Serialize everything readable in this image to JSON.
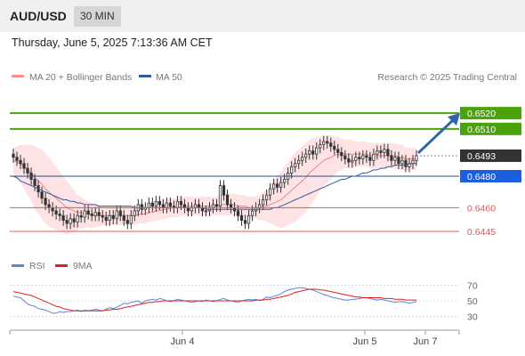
{
  "header": {
    "pair": "AUD/USD",
    "timeframe": "30 MIN"
  },
  "timestamp": "Thursday, June 5, 2025 7:13:36 AM CET",
  "legend": {
    "ma20_bb": "MA 20 + Bollinger Bands",
    "ma50": "MA 50",
    "credit": "Research © 2025 Trading Central",
    "rsi": "RSI",
    "rsi_ma": "9MA"
  },
  "colors": {
    "bullish_line": "#4aa30b",
    "bearish_line": "#e05656",
    "pivot": "#1b4fa0",
    "pivot_label": "#1a5fe0",
    "current": "#333333",
    "arrow": "#2e66a8",
    "ma20": "#e88a8a",
    "bb_fill": "#fde3e3",
    "ma50": "#2f5aa0",
    "rsi": "#5b86d6",
    "rsi_ma": "#e02020"
  },
  "chart_data": [
    {
      "type": "candlestick",
      "title": "AUD/USD 30 MIN",
      "ylim": [
        0.6432,
        0.6537
      ],
      "levels": [
        {
          "value": 0.652,
          "label": "0.6520",
          "kind": "resistance"
        },
        {
          "value": 0.651,
          "label": "0.6510",
          "kind": "resistance"
        },
        {
          "value": 0.6493,
          "label": "0.6493",
          "kind": "current"
        },
        {
          "value": 0.648,
          "label": "0.6480",
          "kind": "pivot"
        },
        {
          "value": 0.646,
          "label": "0.6460",
          "kind": "support"
        },
        {
          "value": 0.6445,
          "label": "0.6445",
          "kind": "support"
        }
      ],
      "x_ticks": [
        "Jun 4",
        "Jun 5",
        "Jun 7"
      ],
      "close": [
        0.6492,
        0.649,
        0.6488,
        0.6485,
        0.6482,
        0.6478,
        0.6474,
        0.647,
        0.6466,
        0.6462,
        0.646,
        0.6458,
        0.6456,
        0.6455,
        0.6452,
        0.645,
        0.6453,
        0.6451,
        0.6455,
        0.6454,
        0.6458,
        0.6456,
        0.6455,
        0.6457,
        0.6455,
        0.6454,
        0.6452,
        0.6455,
        0.6453,
        0.6458,
        0.6455,
        0.6452,
        0.645,
        0.6455,
        0.6458,
        0.6462,
        0.6459,
        0.646,
        0.6463,
        0.6461,
        0.6464,
        0.6462,
        0.646,
        0.6463,
        0.6461,
        0.646,
        0.6464,
        0.6462,
        0.646,
        0.6458,
        0.646,
        0.6462,
        0.646,
        0.6458,
        0.6458,
        0.646,
        0.6462,
        0.6461,
        0.6474,
        0.6468,
        0.6462,
        0.646,
        0.6458,
        0.6455,
        0.6452,
        0.645,
        0.6455,
        0.6458,
        0.646,
        0.6462,
        0.6465,
        0.6468,
        0.6472,
        0.6475,
        0.6473,
        0.6476,
        0.6478,
        0.6482,
        0.6486,
        0.6488,
        0.649,
        0.6492,
        0.6494,
        0.6496,
        0.6494,
        0.6498,
        0.65,
        0.6502,
        0.6501,
        0.6499,
        0.6497,
        0.6495,
        0.6493,
        0.6491,
        0.6489,
        0.649,
        0.6492,
        0.6491,
        0.6493,
        0.6492,
        0.649,
        0.6494,
        0.6496,
        0.6495,
        0.6497,
        0.6493,
        0.649,
        0.6492,
        0.6488,
        0.649,
        0.6486,
        0.6488,
        0.649,
        0.6493
      ],
      "ma20": [
        0.649,
        0.6489,
        0.6488,
        0.6486,
        0.6484,
        0.6482,
        0.6479,
        0.6477,
        0.6475,
        0.6472,
        0.647,
        0.6468,
        0.6466,
        0.6464,
        0.6462,
        0.646,
        0.6459,
        0.6458,
        0.6457,
        0.6457,
        0.6456,
        0.6456,
        0.6455,
        0.6455,
        0.6455,
        0.6455,
        0.6455,
        0.6455,
        0.6455,
        0.6455,
        0.6455,
        0.6455,
        0.6455,
        0.6455,
        0.6455,
        0.6456,
        0.6456,
        0.6456,
        0.6457,
        0.6457,
        0.6458,
        0.6458,
        0.6459,
        0.6459,
        0.646,
        0.646,
        0.646,
        0.6461,
        0.6461,
        0.6461,
        0.6461,
        0.6461,
        0.6461,
        0.6461,
        0.6461,
        0.6461,
        0.6461,
        0.6461,
        0.6462,
        0.6462,
        0.6462,
        0.6462,
        0.6462,
        0.6461,
        0.6461,
        0.6461,
        0.646,
        0.646,
        0.646,
        0.646,
        0.6461,
        0.6461,
        0.6462,
        0.6463,
        0.6464,
        0.6465,
        0.6467,
        0.6469,
        0.6471,
        0.6473,
        0.6475,
        0.6477,
        0.6479,
        0.6482,
        0.6484,
        0.6486,
        0.6488,
        0.649,
        0.6491,
        0.6492,
        0.6493,
        0.6494,
        0.6494,
        0.6494,
        0.6494,
        0.6494,
        0.6494,
        0.6494,
        0.6494,
        0.6494,
        0.6493,
        0.6493,
        0.6493,
        0.6493,
        0.6493,
        0.6493,
        0.6493,
        0.6493,
        0.6492,
        0.6492,
        0.6491,
        0.6491,
        0.6491,
        0.6491
      ],
      "bb_width": [
        0.0008,
        0.001,
        0.0012,
        0.0014,
        0.0016,
        0.0018,
        0.002,
        0.0021,
        0.0022,
        0.0022,
        0.0022,
        0.0021,
        0.002,
        0.0019,
        0.0018,
        0.0017,
        0.0015,
        0.0013,
        0.0011,
        0.001,
        0.0009,
        0.0008,
        0.0008,
        0.0007,
        0.0007,
        0.0006,
        0.0006,
        0.0006,
        0.0006,
        0.0006,
        0.0006,
        0.0006,
        0.0006,
        0.0006,
        0.0006,
        0.0006,
        0.0006,
        0.0006,
        0.0006,
        0.0006,
        0.0006,
        0.0006,
        0.0006,
        0.0006,
        0.0006,
        0.0006,
        0.0006,
        0.0006,
        0.0006,
        0.0006,
        0.0006,
        0.0006,
        0.0006,
        0.0006,
        0.0006,
        0.0006,
        0.0006,
        0.0006,
        0.0007,
        0.0007,
        0.0007,
        0.0007,
        0.0007,
        0.0007,
        0.0007,
        0.0007,
        0.0007,
        0.0007,
        0.0007,
        0.0008,
        0.0009,
        0.001,
        0.0012,
        0.0014,
        0.0016,
        0.0018,
        0.0019,
        0.002,
        0.0021,
        0.0022,
        0.0022,
        0.0022,
        0.0022,
        0.0021,
        0.002,
        0.0019,
        0.0017,
        0.0016,
        0.0015,
        0.0014,
        0.0012,
        0.0011,
        0.001,
        0.0009,
        0.0009,
        0.0009,
        0.0008,
        0.0008,
        0.0008,
        0.0008,
        0.0008,
        0.0008,
        0.0008,
        0.0008,
        0.0008,
        0.0008,
        0.0008,
        0.0008,
        0.0008,
        0.0008,
        0.0007,
        0.0007,
        0.0007,
        0.0007
      ],
      "ma50": [
        0.648,
        0.6479,
        0.6477,
        0.6476,
        0.6475,
        0.6474,
        0.6473,
        0.6472,
        0.6471,
        0.647,
        0.6469,
        0.6468,
        0.6467,
        0.6466,
        0.6465,
        0.6465,
        0.6464,
        0.6464,
        0.6463,
        0.6463,
        0.6462,
        0.6462,
        0.6462,
        0.6462,
        0.6461,
        0.6461,
        0.6461,
        0.6461,
        0.6461,
        0.6461,
        0.6461,
        0.6461,
        0.6461,
        0.6461,
        0.646,
        0.646,
        0.646,
        0.646,
        0.646,
        0.646,
        0.646,
        0.646,
        0.646,
        0.646,
        0.646,
        0.646,
        0.646,
        0.646,
        0.646,
        0.646,
        0.646,
        0.646,
        0.646,
        0.646,
        0.6459,
        0.6459,
        0.6459,
        0.6459,
        0.6459,
        0.6459,
        0.6459,
        0.6459,
        0.6459,
        0.6459,
        0.6459,
        0.6459,
        0.6459,
        0.6459,
        0.6459,
        0.6459,
        0.6459,
        0.6459,
        0.6459,
        0.646,
        0.646,
        0.6461,
        0.6462,
        0.6463,
        0.6464,
        0.6465,
        0.6466,
        0.6467,
        0.6468,
        0.6469,
        0.647,
        0.6471,
        0.6472,
        0.6473,
        0.6474,
        0.6475,
        0.6476,
        0.6477,
        0.6478,
        0.6478,
        0.6479,
        0.648,
        0.648,
        0.6481,
        0.6482,
        0.6482,
        0.6483,
        0.6484,
        0.6484,
        0.6485,
        0.6485,
        0.6486,
        0.6486,
        0.6487,
        0.6487,
        0.6487,
        0.6487,
        0.6488,
        0.6488,
        0.6488
      ]
    },
    {
      "type": "line",
      "title": "RSI",
      "ylim": [
        20,
        80
      ],
      "y_ticks": [
        70,
        50,
        30
      ],
      "series": [
        {
          "name": "RSI",
          "values": [
            56,
            55,
            54,
            50,
            46,
            44,
            43,
            40,
            39,
            38,
            36,
            34,
            34,
            36,
            35,
            36,
            36,
            37,
            38,
            36,
            38,
            37,
            38,
            39,
            38,
            37,
            39,
            41,
            40,
            42,
            44,
            47,
            46,
            48,
            49,
            50,
            47,
            50,
            51,
            52,
            51,
            53,
            52,
            50,
            49,
            50,
            52,
            51,
            50,
            49,
            48,
            49,
            50,
            49,
            51,
            50,
            49,
            50,
            52,
            53,
            51,
            50,
            49,
            48,
            50,
            51,
            52,
            51,
            52,
            50,
            52,
            55,
            54,
            56,
            57,
            59,
            62,
            64,
            65,
            66,
            67,
            67,
            66,
            65,
            64,
            62,
            60,
            58,
            57,
            55,
            54,
            53,
            52,
            51,
            51,
            52,
            52,
            53,
            54,
            54,
            53,
            52,
            51,
            52,
            51,
            50,
            49,
            48,
            49,
            49,
            48,
            47,
            48,
            49
          ]
        },
        {
          "name": "9MA",
          "values": [
            62,
            61,
            60,
            59,
            58,
            57,
            55,
            53,
            51,
            49,
            47,
            45,
            43,
            42,
            40,
            39,
            38,
            37,
            37,
            37,
            37,
            37,
            37,
            37,
            37,
            37,
            38,
            38,
            39,
            39,
            40,
            41,
            42,
            43,
            44,
            45,
            46,
            47,
            48,
            48,
            49,
            49,
            50,
            50,
            50,
            50,
            50,
            50,
            50,
            50,
            50,
            50,
            50,
            50,
            50,
            50,
            50,
            50,
            50,
            50,
            50,
            50,
            50,
            50,
            50,
            50,
            50,
            50,
            51,
            51,
            51,
            52,
            52,
            53,
            54,
            55,
            56,
            57,
            59,
            61,
            62,
            63,
            64,
            65,
            65,
            65,
            64,
            64,
            63,
            62,
            61,
            60,
            59,
            58,
            57,
            56,
            55,
            55,
            54,
            54,
            54,
            54,
            54,
            54,
            53,
            53,
            53,
            52,
            52,
            52,
            51,
            51,
            51,
            51
          ]
        }
      ]
    }
  ]
}
